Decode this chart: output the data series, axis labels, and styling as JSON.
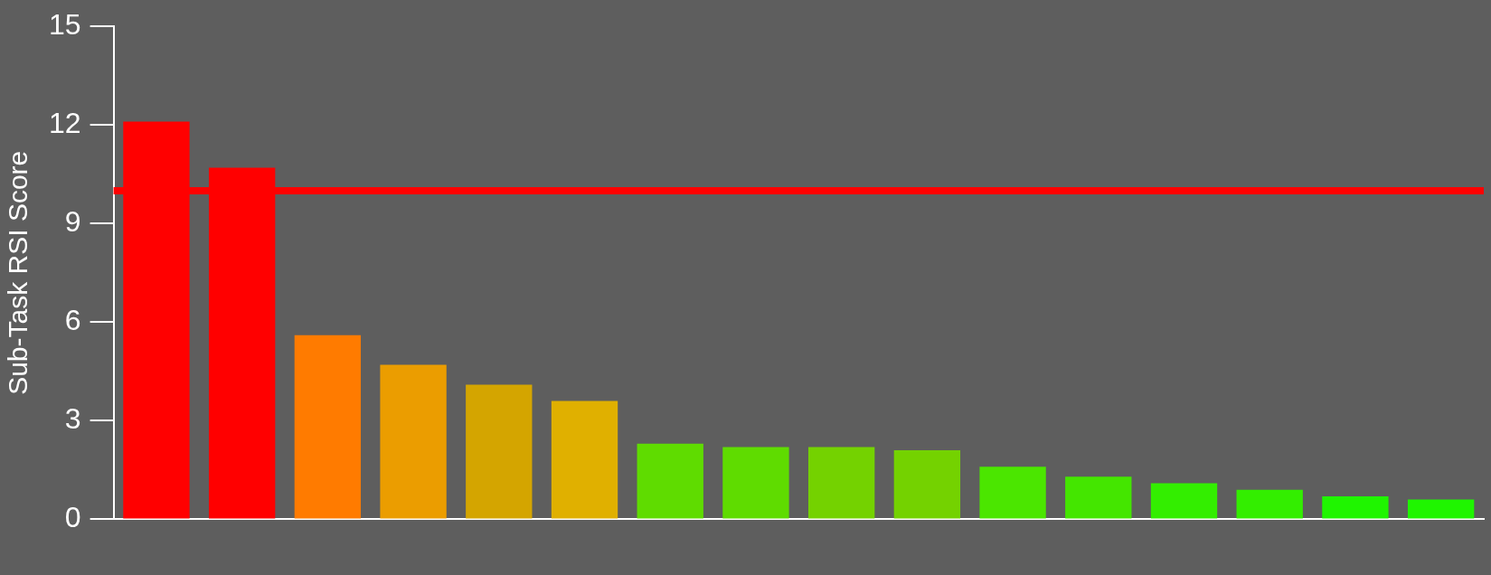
{
  "chart_data": {
    "type": "bar",
    "ylabel": "Sub-Task RSI Score",
    "categories": [
      null,
      null,
      null,
      null,
      null,
      null,
      null,
      null,
      null,
      null,
      null,
      null,
      null,
      null,
      null,
      null
    ],
    "values": [
      12.1,
      10.7,
      5.6,
      4.7,
      4.1,
      3.6,
      2.3,
      2.2,
      2.2,
      2.1,
      1.6,
      1.3,
      1.1,
      0.9,
      0.7,
      0.6
    ],
    "colors": [
      "#ff0000",
      "#ff0000",
      "#ff7b00",
      "#eb9d00",
      "#d4a500",
      "#e0b000",
      "#5fdc00",
      "#5fdc00",
      "#74d200",
      "#74d200",
      "#4be600",
      "#44e600",
      "#33ee00",
      "#33ee00",
      "#1ff500",
      "#1ff500"
    ],
    "ylim": [
      0,
      15
    ],
    "yticks": [
      0,
      3,
      6,
      9,
      12,
      15
    ],
    "grid": false,
    "legend": false,
    "ref_lines": [
      {
        "axis": "y",
        "value": 10,
        "color": "#ff0000"
      }
    ]
  }
}
